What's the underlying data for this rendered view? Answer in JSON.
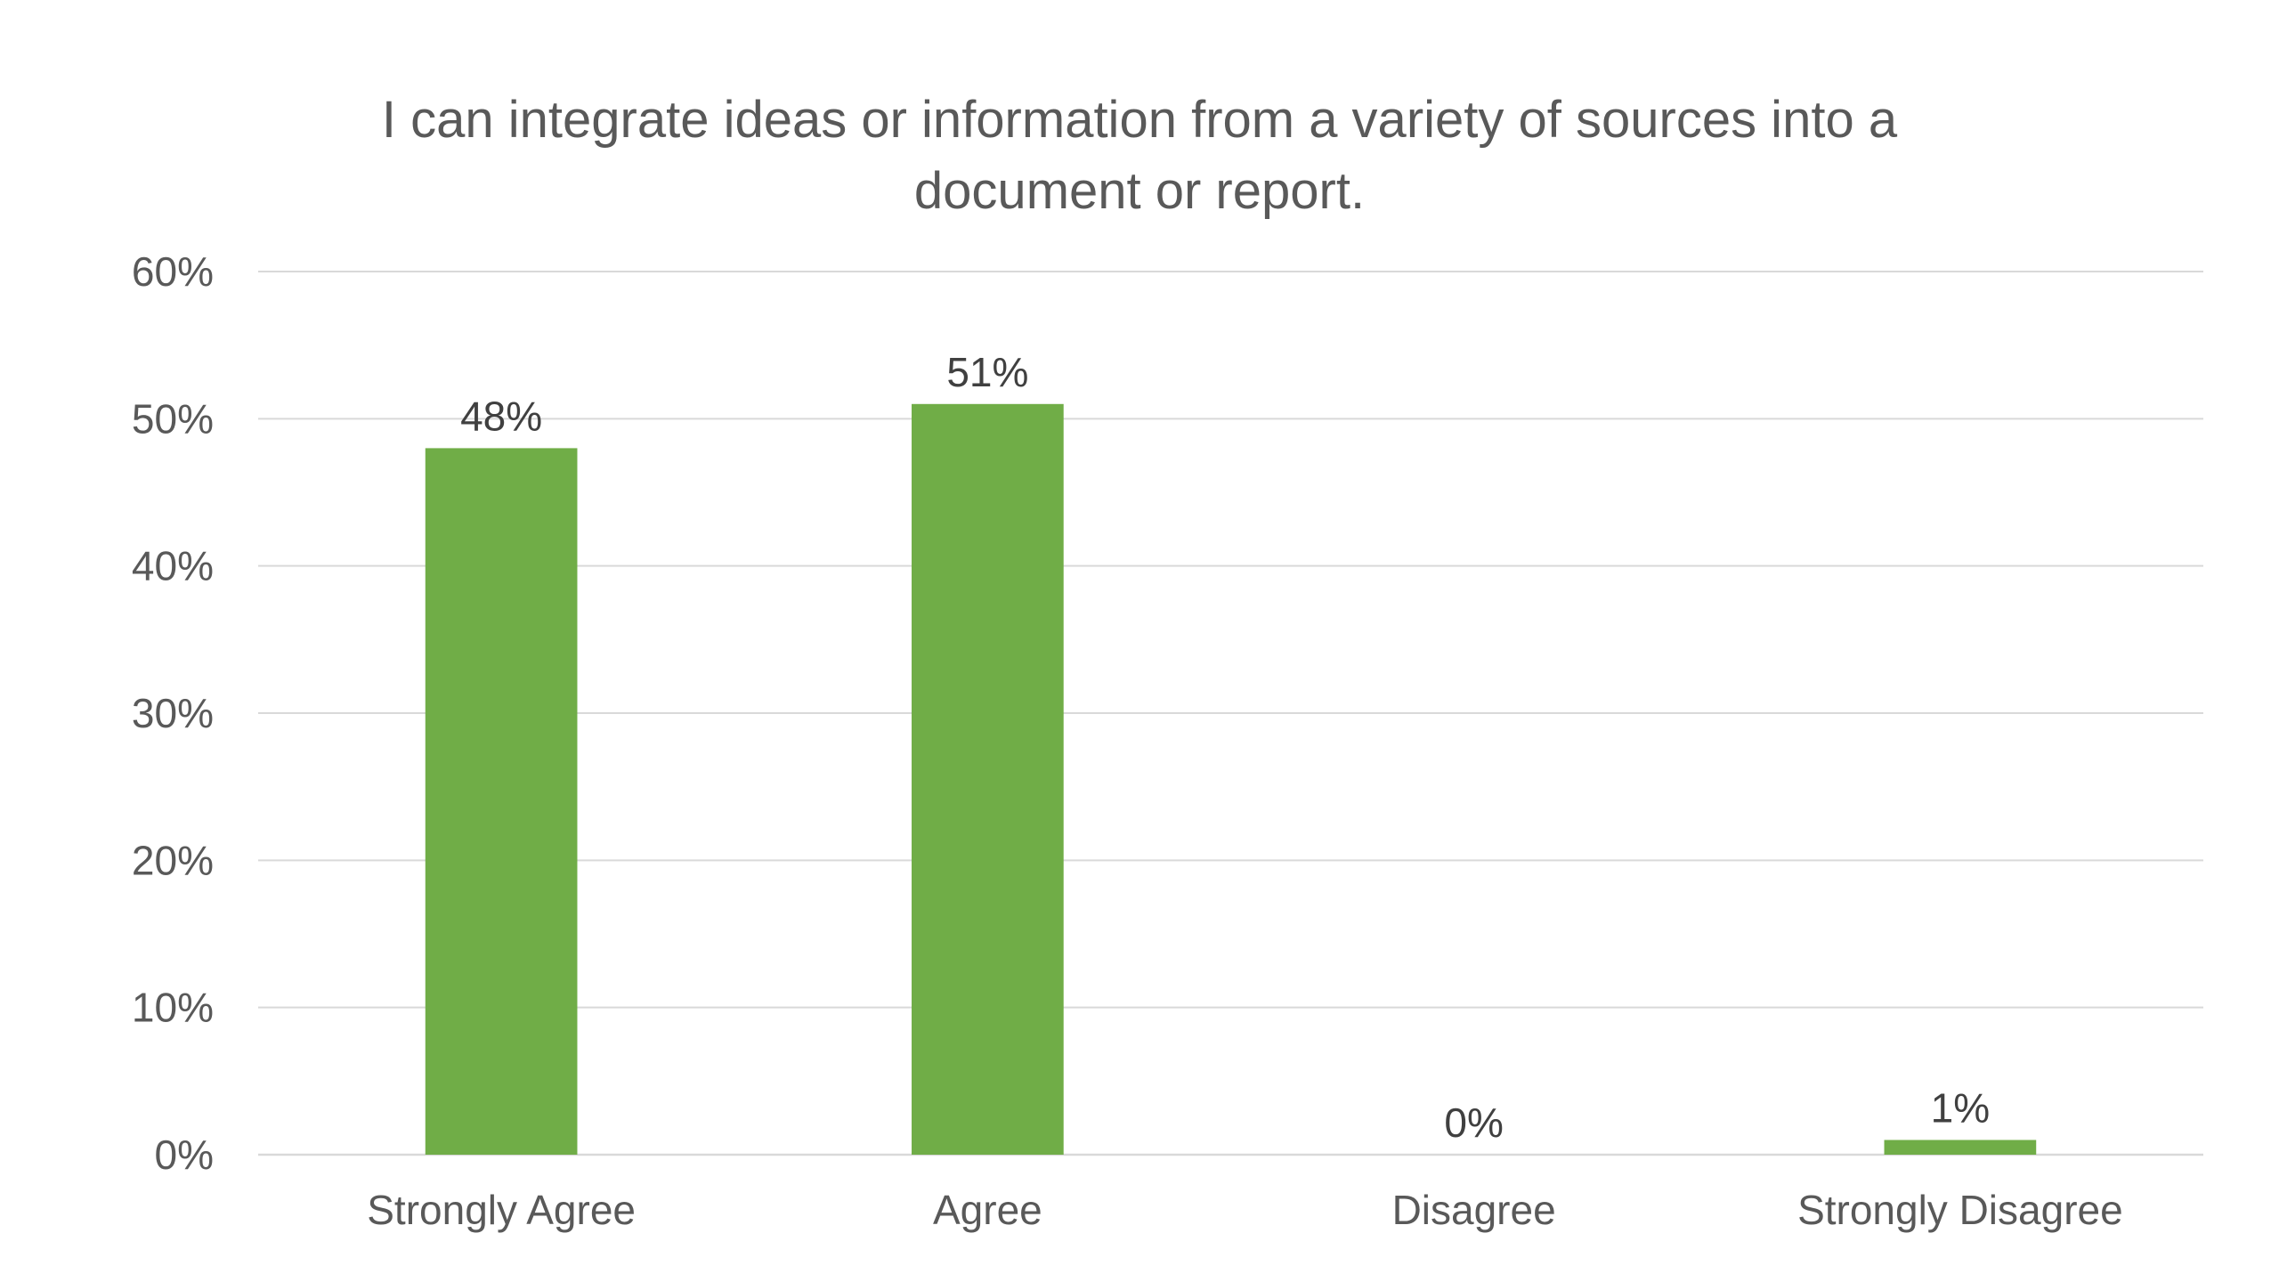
{
  "chart_data": {
    "type": "bar",
    "title_lines": [
      "I can integrate ideas or information from a variety of sources into a",
      "document or report."
    ],
    "categories": [
      "Strongly Agree",
      "Agree",
      "Disagree",
      "Strongly Disagree"
    ],
    "values": [
      48,
      51,
      0,
      1
    ],
    "data_labels": [
      "48%",
      "51%",
      "0%",
      "1%"
    ],
    "ylim": [
      0,
      60
    ],
    "yticks": [
      0,
      10,
      20,
      30,
      40,
      50,
      60
    ],
    "ytick_labels": [
      "0%",
      "10%",
      "20%",
      "30%",
      "40%",
      "50%",
      "60%"
    ],
    "grid": true,
    "legend": "none",
    "bar_color": "#70AD47"
  }
}
